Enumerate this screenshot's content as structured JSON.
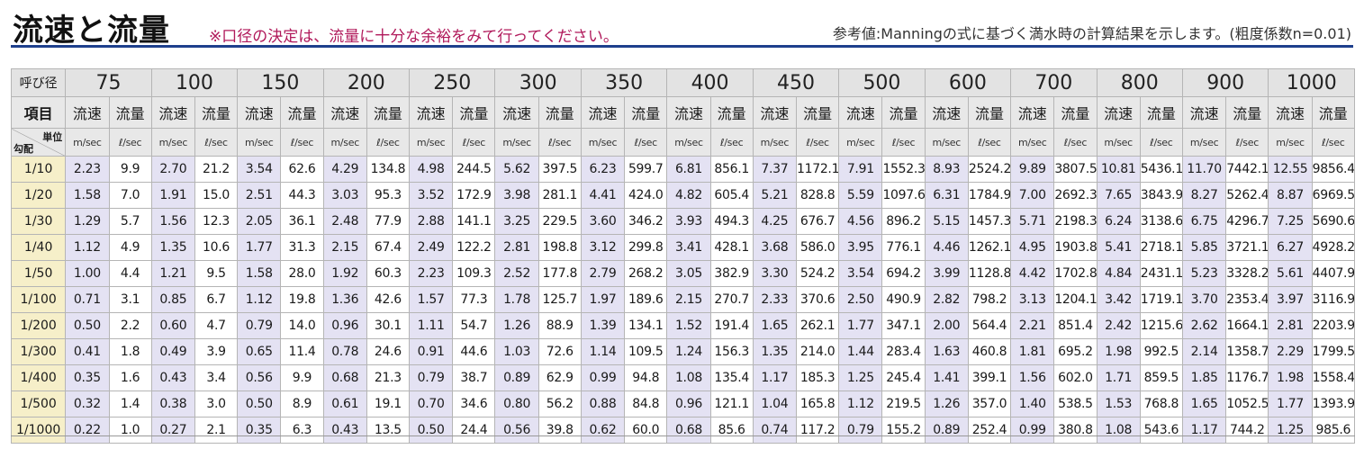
{
  "header": {
    "title": "流速と流量",
    "note": "※口径の決定は、流量に十分な余裕をみて行ってください。",
    "reference": "参考値:Manningの式に基づく満水時の計算結果を示します。(粗度係数n=0.01)"
  },
  "table": {
    "diam_label": "呼び径",
    "item_label": "項目",
    "unit_label": "単位",
    "slope_label": "勾配",
    "velocity_label": "流速",
    "flow_label": "流量",
    "velocity_unit": "m/sec",
    "flow_unit": "ℓ/sec",
    "diameters": [
      "75",
      "100",
      "150",
      "200",
      "250",
      "300",
      "350",
      "400",
      "450",
      "500",
      "600",
      "700",
      "800",
      "900",
      "1000"
    ],
    "slopes": [
      "1/10",
      "1/20",
      "1/30",
      "1/40",
      "1/50",
      "1/100",
      "1/200",
      "1/300",
      "1/400",
      "1/500",
      "1/1000"
    ],
    "rows": [
      [
        "2.23",
        "9.9",
        "2.70",
        "21.2",
        "3.54",
        "62.6",
        "4.29",
        "134.8",
        "4.98",
        "244.5",
        "5.62",
        "397.5",
        "6.23",
        "599.7",
        "6.81",
        "856.1",
        "7.37",
        "1172.1",
        "7.91",
        "1552.3",
        "8.93",
        "2524.2",
        "9.89",
        "3807.5",
        "10.81",
        "5436.1",
        "11.70",
        "7442.1",
        "12.55",
        "9856.4"
      ],
      [
        "1.58",
        "7.0",
        "1.91",
        "15.0",
        "2.51",
        "44.3",
        "3.03",
        "95.3",
        "3.52",
        "172.9",
        "3.98",
        "281.1",
        "4.41",
        "424.0",
        "4.82",
        "605.4",
        "5.21",
        "828.8",
        "5.59",
        "1097.6",
        "6.31",
        "1784.9",
        "7.00",
        "2692.3",
        "7.65",
        "3843.9",
        "8.27",
        "5262.4",
        "8.87",
        "6969.5"
      ],
      [
        "1.29",
        "5.7",
        "1.56",
        "12.3",
        "2.05",
        "36.1",
        "2.48",
        "77.9",
        "2.88",
        "141.1",
        "3.25",
        "229.5",
        "3.60",
        "346.2",
        "3.93",
        "494.3",
        "4.25",
        "676.7",
        "4.56",
        "896.2",
        "5.15",
        "1457.3",
        "5.71",
        "2198.3",
        "6.24",
        "3138.6",
        "6.75",
        "4296.7",
        "7.25",
        "5690.6"
      ],
      [
        "1.12",
        "4.9",
        "1.35",
        "10.6",
        "1.77",
        "31.3",
        "2.15",
        "67.4",
        "2.49",
        "122.2",
        "2.81",
        "198.8",
        "3.12",
        "299.8",
        "3.41",
        "428.1",
        "3.68",
        "586.0",
        "3.95",
        "776.1",
        "4.46",
        "1262.1",
        "4.95",
        "1903.8",
        "5.41",
        "2718.1",
        "5.85",
        "3721.1",
        "6.27",
        "4928.2"
      ],
      [
        "1.00",
        "4.4",
        "1.21",
        "9.5",
        "1.58",
        "28.0",
        "1.92",
        "60.3",
        "2.23",
        "109.3",
        "2.52",
        "177.8",
        "2.79",
        "268.2",
        "3.05",
        "382.9",
        "3.30",
        "524.2",
        "3.54",
        "694.2",
        "3.99",
        "1128.8",
        "4.42",
        "1702.8",
        "4.84",
        "2431.1",
        "5.23",
        "3328.2",
        "5.61",
        "4407.9"
      ],
      [
        "0.71",
        "3.1",
        "0.85",
        "6.7",
        "1.12",
        "19.8",
        "1.36",
        "42.6",
        "1.57",
        "77.3",
        "1.78",
        "125.7",
        "1.97",
        "189.6",
        "2.15",
        "270.7",
        "2.33",
        "370.6",
        "2.50",
        "490.9",
        "2.82",
        "798.2",
        "3.13",
        "1204.1",
        "3.42",
        "1719.1",
        "3.70",
        "2353.4",
        "3.97",
        "3116.9"
      ],
      [
        "0.50",
        "2.2",
        "0.60",
        "4.7",
        "0.79",
        "14.0",
        "0.96",
        "30.1",
        "1.11",
        "54.7",
        "1.26",
        "88.9",
        "1.39",
        "134.1",
        "1.52",
        "191.4",
        "1.65",
        "262.1",
        "1.77",
        "347.1",
        "2.00",
        "564.4",
        "2.21",
        "851.4",
        "2.42",
        "1215.6",
        "2.62",
        "1664.1",
        "2.81",
        "2203.9"
      ],
      [
        "0.41",
        "1.8",
        "0.49",
        "3.9",
        "0.65",
        "11.4",
        "0.78",
        "24.6",
        "0.91",
        "44.6",
        "1.03",
        "72.6",
        "1.14",
        "109.5",
        "1.24",
        "156.3",
        "1.35",
        "214.0",
        "1.44",
        "283.4",
        "1.63",
        "460.8",
        "1.81",
        "695.2",
        "1.98",
        "992.5",
        "2.14",
        "1358.7",
        "2.29",
        "1799.5"
      ],
      [
        "0.35",
        "1.6",
        "0.43",
        "3.4",
        "0.56",
        "9.9",
        "0.68",
        "21.3",
        "0.79",
        "38.7",
        "0.89",
        "62.9",
        "0.99",
        "94.8",
        "1.08",
        "135.4",
        "1.17",
        "185.3",
        "1.25",
        "245.4",
        "1.41",
        "399.1",
        "1.56",
        "602.0",
        "1.71",
        "859.5",
        "1.85",
        "1176.7",
        "1.98",
        "1558.4"
      ],
      [
        "0.32",
        "1.4",
        "0.38",
        "3.0",
        "0.50",
        "8.9",
        "0.61",
        "19.1",
        "0.70",
        "34.6",
        "0.80",
        "56.2",
        "0.88",
        "84.8",
        "0.96",
        "121.1",
        "1.04",
        "165.8",
        "1.12",
        "219.5",
        "1.26",
        "357.0",
        "1.40",
        "538.5",
        "1.53",
        "768.8",
        "1.65",
        "1052.5",
        "1.77",
        "1393.9"
      ],
      [
        "0.22",
        "1.0",
        "0.27",
        "2.1",
        "0.35",
        "6.3",
        "0.43",
        "13.5",
        "0.50",
        "24.4",
        "0.56",
        "39.8",
        "0.62",
        "60.0",
        "0.68",
        "85.6",
        "0.74",
        "117.2",
        "0.79",
        "155.2",
        "0.89",
        "252.4",
        "0.99",
        "380.8",
        "1.08",
        "543.6",
        "1.17",
        "744.2",
        "1.25",
        "985.6"
      ]
    ]
  }
}
